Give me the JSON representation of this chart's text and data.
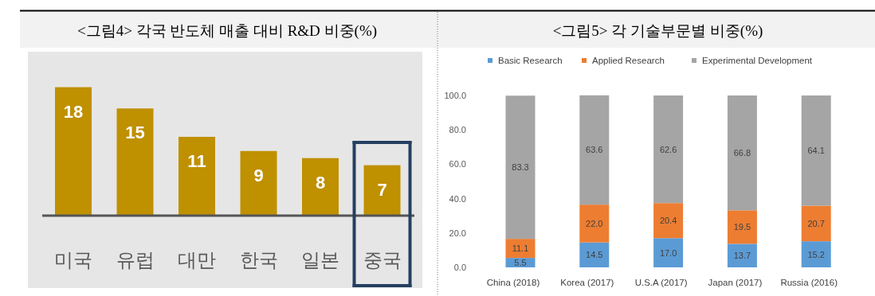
{
  "chart_data": [
    {
      "type": "bar",
      "title": "<그림4> 각국 반도체 매출 대비 R&D 비중(%)",
      "categories": [
        "미국",
        "유럽",
        "대만",
        "한국",
        "일본",
        "중국"
      ],
      "values": [
        18,
        15,
        11,
        9,
        8,
        7
      ],
      "color": "#bf9000",
      "data_labels": true,
      "ylim": [
        0,
        23
      ]
    },
    {
      "type": "bar",
      "title": "<그림5> 각 기술부문별 비중(%)",
      "categories": [
        "China (2018)",
        "Korea (2017)",
        "U.S.A (2017)",
        "Japan (2017)",
        "Russia (2016)"
      ],
      "stacked": true,
      "legend": "top",
      "ylim": [
        0,
        100
      ],
      "yticks": [
        {
          "value": 0,
          "label": "0.0"
        },
        {
          "value": 20,
          "label": "20.0"
        },
        {
          "value": 40,
          "label": "40.0"
        },
        {
          "value": 60,
          "label": "60.0"
        },
        {
          "value": 80,
          "label": "80.0"
        },
        {
          "value": 100,
          "label": "100.0"
        }
      ],
      "series": [
        {
          "name": "Basic Research",
          "color": "#5b9bd5",
          "values": [
            5.5,
            14.5,
            17.0,
            13.7,
            15.2
          ],
          "value_labels": [
            "5.5",
            "14.5",
            "17.0",
            "13.7",
            "15.2"
          ]
        },
        {
          "name": "Applied Research",
          "color": "#ed7d31",
          "values": [
            11.1,
            22.0,
            20.4,
            19.5,
            20.7
          ],
          "value_labels": [
            "11.1",
            "22.0",
            "20.4",
            "19.5",
            "20.7"
          ]
        },
        {
          "name": "Experimental Development",
          "color": "#a5a5a5",
          "values": [
            83.3,
            63.6,
            62.6,
            66.8,
            64.1
          ],
          "value_labels": [
            "83.3",
            "63.6",
            "62.6",
            "66.8",
            "64.1"
          ]
        }
      ]
    }
  ]
}
